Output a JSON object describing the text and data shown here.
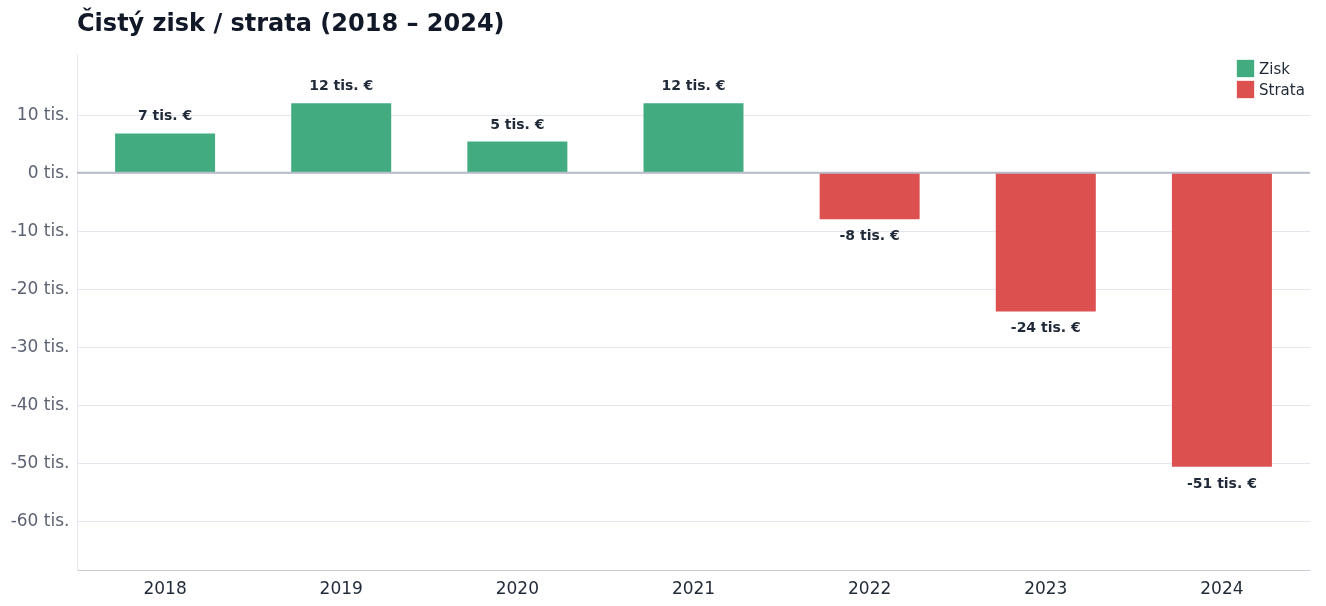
{
  "chart_data": {
    "type": "bar",
    "title": "Čistý zisk / strata (2018 – 2024)",
    "categories": [
      "2018",
      "2019",
      "2020",
      "2021",
      "2022",
      "2023",
      "2024"
    ],
    "series": [
      {
        "name": "Zisk",
        "color": "#42ab80",
        "values": [
          6.8,
          12.0,
          5.4,
          12.0,
          null,
          null,
          null
        ],
        "value_labels": [
          "7 tis. €",
          "12 tis. €",
          "5 tis. €",
          "12 tis. €",
          null,
          null,
          null
        ]
      },
      {
        "name": "Strata",
        "color": "#dc5050",
        "values": [
          null,
          null,
          null,
          null,
          -8.0,
          -23.9,
          -50.7
        ],
        "value_labels": [
          null,
          null,
          null,
          null,
          "-8 tis. €",
          "-24 tis. €",
          "-51 tis. €"
        ]
      }
    ],
    "ylim": [
      -68.5,
      20.5
    ],
    "yticks": [
      {
        "value": -60,
        "label": "-60 tis."
      },
      {
        "value": -50,
        "label": "-50 tis."
      },
      {
        "value": -40,
        "label": "-40 tis."
      },
      {
        "value": -30,
        "label": "-30 tis."
      },
      {
        "value": -20,
        "label": "-20 tis."
      },
      {
        "value": -10,
        "label": "-10 tis."
      },
      {
        "value": 0,
        "label": "0 tis."
      },
      {
        "value": 10,
        "label": "10 tis."
      }
    ],
    "ref_lines": [
      {
        "axis": "y",
        "value": 0,
        "color": "#b8bcc8"
      }
    ],
    "grid": "y",
    "legend": "top right"
  }
}
